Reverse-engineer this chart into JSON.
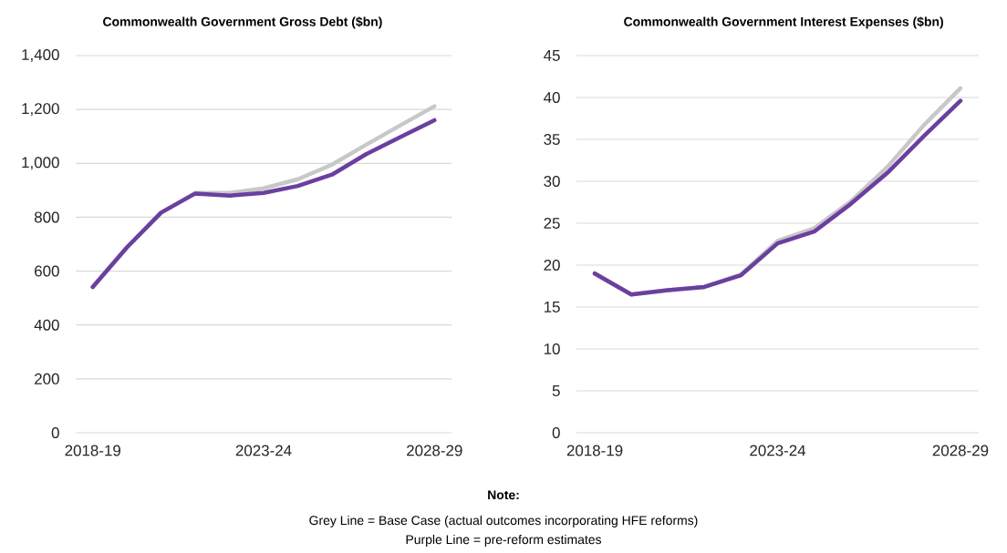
{
  "chart_data": [
    {
      "type": "line",
      "title": "Commonwealth Government Gross Debt ($bn)",
      "categories": [
        "2018-19",
        null,
        null,
        null,
        null,
        "2023-24",
        null,
        null,
        null,
        null,
        "2028-29"
      ],
      "series": [
        {
          "color": "#c8c8c8",
          "values": [
            541,
            688,
            817,
            890,
            890,
            907,
            941,
            995,
            1069,
            1141,
            1212
          ]
        },
        {
          "color": "#6b3fa0",
          "values": [
            541,
            688,
            817,
            888,
            880,
            890,
            916,
            958,
            1034,
            1097,
            1160
          ]
        }
      ],
      "ylim": [
        0,
        1400
      ],
      "yticks": [
        0,
        200,
        400,
        600,
        800,
        {
          "value": 1000,
          "label": "1,000"
        },
        {
          "value": 1200,
          "label": "1,200"
        },
        {
          "value": 1400,
          "label": "1,400"
        }
      ],
      "grid": "y",
      "annotations": [
        "Note:",
        "Grey Line = Base Case (actual outcomes incorporating HFE reforms)",
        "Purple Line = pre-reform estimates"
      ]
    },
    {
      "type": "line",
      "title": "Commonwealth Government Interest Expenses ($bn)",
      "categories": [
        "2018-19",
        null,
        null,
        null,
        null,
        "2023-24",
        null,
        null,
        null,
        null,
        "2028-29"
      ],
      "series": [
        {
          "color": "#c8c8c8",
          "values": [
            19.0,
            16.5,
            17.0,
            17.4,
            18.9,
            22.9,
            24.4,
            27.6,
            31.7,
            36.7,
            41.1
          ]
        },
        {
          "color": "#6b3fa0",
          "values": [
            19.0,
            16.5,
            17.0,
            17.4,
            18.8,
            22.6,
            24.0,
            27.3,
            31.0,
            35.4,
            39.6
          ]
        }
      ],
      "ylim": [
        0,
        45
      ],
      "yticks": [
        0,
        5,
        10,
        15,
        20,
        25,
        30,
        35,
        40,
        45
      ],
      "grid": "y"
    }
  ]
}
